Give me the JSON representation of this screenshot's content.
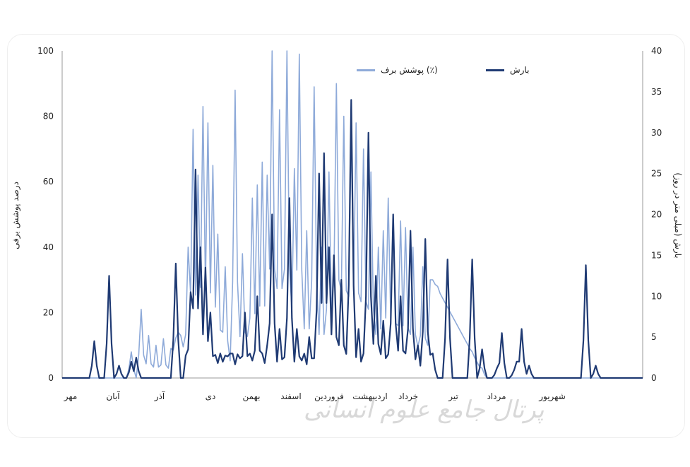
{
  "chart_data": {
    "type": "line",
    "xlabel": "",
    "ylabel_left": "درصد پوشش برفی",
    "ylabel_right": "بارش (میلی متر در روز)",
    "yleft_lim": [
      0,
      100
    ],
    "yleft_ticks": [
      0,
      20,
      40,
      60,
      80,
      100
    ],
    "yright_lim": [
      0,
      40
    ],
    "yright_ticks": [
      0,
      5,
      10,
      15,
      20,
      25,
      30,
      35,
      40
    ],
    "months": [
      "مهر",
      "آبان",
      "آذر",
      "دی",
      "بهمن",
      "اسفند",
      "فروردین",
      "اردیبهشت",
      "خرداد",
      "تیر",
      "مرداد",
      "شهریور"
    ],
    "legend_position": "top-center",
    "grid": false,
    "series": [
      {
        "name": "بارش",
        "axis": "right",
        "color": "#1f3a73",
        "peaks": [
          [
            13,
            4.5
          ],
          [
            19,
            12.5
          ],
          [
            23,
            1.5
          ],
          [
            28,
            2
          ],
          [
            30,
            2.5
          ],
          [
            46,
            14
          ],
          [
            52,
            10.5
          ],
          [
            54,
            25.5
          ],
          [
            56,
            16
          ],
          [
            58,
            13.5
          ],
          [
            60,
            8
          ],
          [
            68,
            3
          ],
          [
            74,
            8
          ],
          [
            79,
            10
          ],
          [
            83,
            4
          ],
          [
            85,
            20
          ],
          [
            88,
            6
          ],
          [
            92,
            22
          ],
          [
            95,
            6
          ],
          [
            100,
            5
          ],
          [
            104,
            25
          ],
          [
            106,
            27.5
          ],
          [
            108,
            16
          ],
          [
            110,
            15
          ],
          [
            113,
            12
          ],
          [
            117,
            34
          ],
          [
            120,
            6
          ],
          [
            124,
            30
          ],
          [
            127,
            12.5
          ],
          [
            130,
            7
          ],
          [
            134,
            20
          ],
          [
            137,
            10
          ],
          [
            141,
            18
          ],
          [
            144,
            4
          ],
          [
            147,
            17
          ],
          [
            150,
            3
          ],
          [
            156,
            14.5
          ],
          [
            166,
            14.5
          ],
          [
            170,
            3.5
          ],
          [
            176,
            1.2
          ],
          [
            178,
            5.5
          ],
          [
            183,
            1
          ],
          [
            184,
            2
          ],
          [
            186,
            6
          ],
          [
            189,
            1.5
          ],
          [
            212,
            13.8
          ],
          [
            216,
            1.5
          ]
        ]
      },
      {
        "name": "پوشش برف (٪)",
        "axis": "left",
        "color": "#8eaad9",
        "peaks": [
          [
            28,
            8
          ],
          [
            32,
            21
          ],
          [
            35,
            13
          ],
          [
            38,
            10
          ],
          [
            41,
            12
          ],
          [
            44,
            9
          ],
          [
            48,
            13
          ],
          [
            51,
            40
          ],
          [
            53,
            76
          ],
          [
            55,
            62
          ],
          [
            57,
            83
          ],
          [
            59,
            78
          ],
          [
            61,
            65
          ],
          [
            63,
            44
          ],
          [
            66,
            34
          ],
          [
            70,
            88
          ],
          [
            73,
            38
          ],
          [
            77,
            55
          ],
          [
            79,
            59
          ],
          [
            81,
            66
          ],
          [
            83,
            62
          ],
          [
            85,
            100
          ],
          [
            88,
            82
          ],
          [
            91,
            100
          ],
          [
            94,
            64
          ],
          [
            96,
            99
          ],
          [
            99,
            45
          ],
          [
            102,
            89
          ],
          [
            105,
            40
          ],
          [
            108,
            63
          ],
          [
            111,
            90
          ],
          [
            114,
            80
          ],
          [
            117,
            75
          ],
          [
            119,
            78
          ],
          [
            122,
            70
          ],
          [
            125,
            63
          ],
          [
            128,
            40
          ],
          [
            130,
            45
          ],
          [
            132,
            55
          ],
          [
            134,
            50
          ],
          [
            137,
            48
          ],
          [
            139,
            46
          ],
          [
            142,
            40
          ],
          [
            146,
            34
          ],
          [
            149,
            30
          ],
          [
            152,
            28
          ],
          [
            155,
            22
          ],
          [
            160,
            15
          ],
          [
            166,
            8
          ],
          [
            170,
            3
          ]
        ]
      }
    ]
  },
  "watermark_text": "پرتال جامع علوم انسانی"
}
